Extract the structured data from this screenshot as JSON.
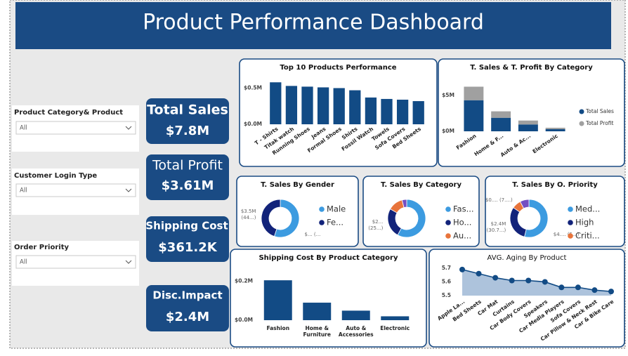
{
  "header": {
    "title": "Product Performance Dashboard"
  },
  "slicers": [
    {
      "label": "Product Category& Product",
      "value": "All"
    },
    {
      "label": "Customer Login Type",
      "value": "All"
    },
    {
      "label": "Order Priority",
      "value": "All"
    }
  ],
  "cards": [
    {
      "label": "Total Sales",
      "value": "$7.8M"
    },
    {
      "label": "Total Profit",
      "value": "$3.61M"
    },
    {
      "label": "Shipping Cost",
      "value": "$361.2K"
    },
    {
      "label": "Disc.Impact",
      "value": "$2.4M"
    }
  ],
  "chart_data": [
    {
      "type": "bar",
      "title": "Top 10 Products Performance",
      "categories": [
        "T - Shirts",
        "Titak watch",
        "Running Shoes",
        "Jeans",
        "Formal Shoes",
        "Shirts",
        "Fossil Watch",
        "Towels",
        "Sofa Covers",
        "Bed Sheets"
      ],
      "values": [
        0.58,
        0.53,
        0.52,
        0.51,
        0.5,
        0.47,
        0.37,
        0.35,
        0.34,
        0.32
      ],
      "color": "#124b85",
      "ylim": [
        0,
        0.65
      ],
      "yticks": [
        {
          "value": 0,
          "label": "$0.0M"
        },
        {
          "value": 0.5,
          "label": "$0.5M"
        }
      ]
    },
    {
      "type": "stacked_bar",
      "title": "T. Sales & T. Profit By Category",
      "categories": [
        "Fashion",
        "Home & F...",
        "Auto & Ac...",
        "Electronic"
      ],
      "series": [
        {
          "name": "Total Sales",
          "color": "#124b85",
          "values": [
            4.36,
            1.9,
            0.96,
            0.3
          ]
        },
        {
          "name": "Total Profit",
          "color": "#a0a0a0",
          "values": [
            1.9,
            0.9,
            0.55,
            0.2
          ]
        }
      ],
      "ylim": [
        0,
        6.6
      ],
      "yticks": [
        {
          "value": 0,
          "label": "$0M"
        },
        {
          "value": 5,
          "label": "$5M"
        }
      ]
    },
    {
      "type": "donut",
      "title": "T. Sales By Gender",
      "categories": [
        "Male",
        "Fe..."
      ],
      "values": [
        4.3,
        3.5
      ],
      "colors": [
        "#3c9be0",
        "#12237a"
      ],
      "value_labels": [
        [
          "$... (..."
        ],
        [
          "$3.5M",
          "(44...)"
        ]
      ]
    },
    {
      "type": "donut",
      "title": "T. Sales By Category",
      "categories": [
        "Fas...",
        "Ho...",
        "Au...",
        null
      ],
      "values": [
        4.36,
        1.9,
        0.96,
        0.3
      ],
      "colors": [
        "#3c9be0",
        "#12237a",
        "#e8743b",
        "#744ec2"
      ],
      "value_labels": [
        null,
        [
          "$2...",
          "(25...)"
        ],
        null,
        null
      ]
    },
    {
      "type": "donut",
      "title": "T. Sales By O. Priority",
      "categories": [
        "Med...",
        "High",
        "Criti...",
        null
      ],
      "values": [
        4.2,
        2.4,
        0.6,
        0.6
      ],
      "colors": [
        "#3c9be0",
        "#12237a",
        "#e8743b",
        "#744ec2"
      ],
      "value_labels": [
        [
          "$4.... (5...)"
        ],
        [
          "$2.4M",
          "(30.7...)"
        ],
        [
          "$0.... (7....)"
        ],
        null
      ]
    },
    {
      "type": "bar",
      "title": "Shipping Cost By Product Category",
      "categories": [
        "Fashion",
        "Home & Furniture",
        "Auto & Accessories",
        "Electronic"
      ],
      "values": [
        0.205,
        0.09,
        0.049,
        0.02
      ],
      "color": "#124b85",
      "ylim": [
        0,
        0.22
      ],
      "yticks": [
        {
          "value": 0,
          "label": "$0.0M"
        },
        {
          "value": 0.2,
          "label": "$0.2M"
        }
      ]
    },
    {
      "type": "area",
      "title": "AVG. Aging By Product",
      "categories": [
        "Apple La...",
        "Bed Sheets",
        "Car Mat",
        "Curtains",
        "Car Body Covers",
        "Speakers",
        "Car Media Players",
        "Sofa Covers",
        "Car Pillow & Neck Rest",
        "Car & Bike Care"
      ],
      "values": [
        5.69,
        5.66,
        5.63,
        5.61,
        5.61,
        5.6,
        5.56,
        5.56,
        5.54,
        5.53
      ],
      "color": "#124b85",
      "ylim": [
        5.5,
        5.72
      ],
      "yticks": [
        5.5,
        5.6,
        5.7
      ]
    }
  ]
}
